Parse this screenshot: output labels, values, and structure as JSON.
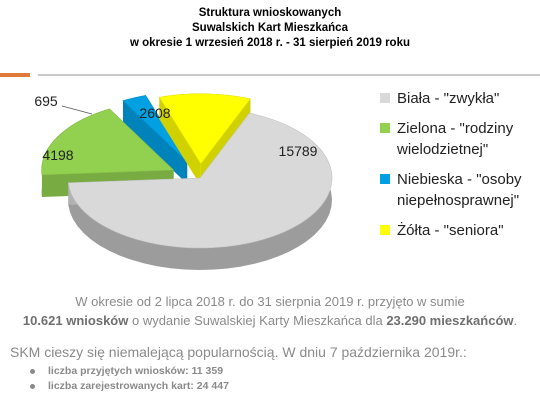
{
  "title_lines": [
    "Struktura wnioskowanych",
    "Suwalskich Kart Mieszkańca",
    "w okresie 1 wrzesień 2018 r. - 31 sierpień 2019 roku"
  ],
  "chart_data": {
    "type": "pie",
    "style": "3d-exploded",
    "slices": [
      {
        "label": "Biała - \"zwykła\"",
        "value": 15789,
        "color": "#d9d9d9"
      },
      {
        "label": "Zielona - \"rodziny wielodzietnej\"",
        "value": 4198,
        "color": "#92d050"
      },
      {
        "label": "Niebieska - \"osoby niepełnosprawnej\"",
        "value": 695,
        "color": "#00a0e3"
      },
      {
        "label": "Żółta - \"seniora\"",
        "value": 2608,
        "color": "#ffff00"
      }
    ],
    "legend_position": "right"
  },
  "legend": [
    {
      "line1": "Biała - \"zwykła\"",
      "line2": "",
      "color": "#d9d9d9"
    },
    {
      "line1": "Zielona - \"rodziny",
      "line2": "wielodzietnej\"",
      "color": "#92d050"
    },
    {
      "line1": "Niebieska - \"osoby",
      "line2": "niepełnosprawnej\"",
      "color": "#00a0e3"
    },
    {
      "line1": "Żółta - \"seniora\"",
      "line2": "",
      "color": "#ffff00"
    }
  ],
  "summary": {
    "line1": "W okresie od 2 lipca 2018 r. do 31 sierpnia 2019 r. przyjęto w sumie",
    "line2_a": "10.621 wniosków",
    "line2_b": " o wydanie Suwalskiej Karty Mieszkańca dla ",
    "line2_c": "23.290 mieszkańców",
    "line2_d": "."
  },
  "headline": "SKM cieszy się niemalejącą popularnością. W dniu 7 października 2019r.:",
  "bullets": [
    "liczba przyjętych wniosków: 11 359",
    "liczba zarejestrowanych kart: 24 447"
  ]
}
